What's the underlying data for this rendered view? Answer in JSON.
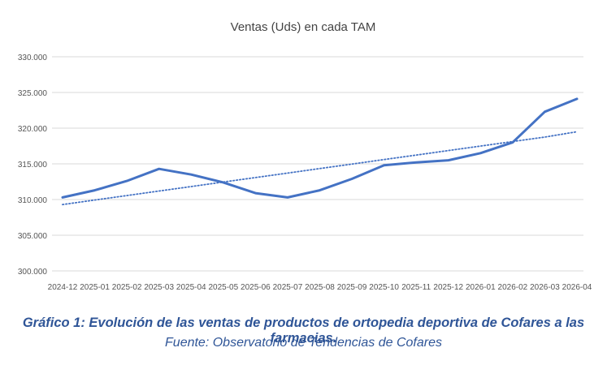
{
  "chart_data": {
    "type": "line",
    "title": "Ventas (Uds) en cada TAM",
    "xlabel": "",
    "ylabel": "",
    "categories": [
      "2024-12",
      "2025-01",
      "2025-02",
      "2025-03",
      "2025-04",
      "2025-05",
      "2025-06",
      "2025-07",
      "2025-08",
      "2025-09",
      "2025-10",
      "2025-11",
      "2025-12",
      "2026-01",
      "2026-02",
      "2026-03",
      "2026-04"
    ],
    "series": [
      {
        "values": [
          310300,
          311300,
          312600,
          314300,
          313500,
          312400,
          310900,
          310300,
          311300,
          312900,
          314800,
          315200,
          315500,
          316500,
          318000,
          322300,
          324100
        ],
        "color": "#4472c4",
        "style": "solid"
      },
      {
        "values": [
          309300,
          309930,
          310560,
          311190,
          311820,
          312450,
          313080,
          313710,
          314340,
          314970,
          315600,
          316230,
          316860,
          317490,
          318120,
          318750,
          319500
        ],
        "color": "#4472c4",
        "style": "dotted"
      }
    ],
    "ylim": [
      300000,
      330000
    ],
    "yticks": [
      "300.000",
      "305.000",
      "310.000",
      "315.000",
      "320.000",
      "325.000",
      "330.000"
    ],
    "grid": true,
    "legend": "none"
  },
  "caption": {
    "title": "Gráfico 1: Evolución de las ventas de productos de ortopedia deportiva de Cofares a las farmacias.",
    "source": "Fuente: Observatorio de Tendencias de Cofares"
  },
  "colors": {
    "series": "#4472c4",
    "caption": "#2f5597",
    "grid": "#d9d9d9"
  }
}
